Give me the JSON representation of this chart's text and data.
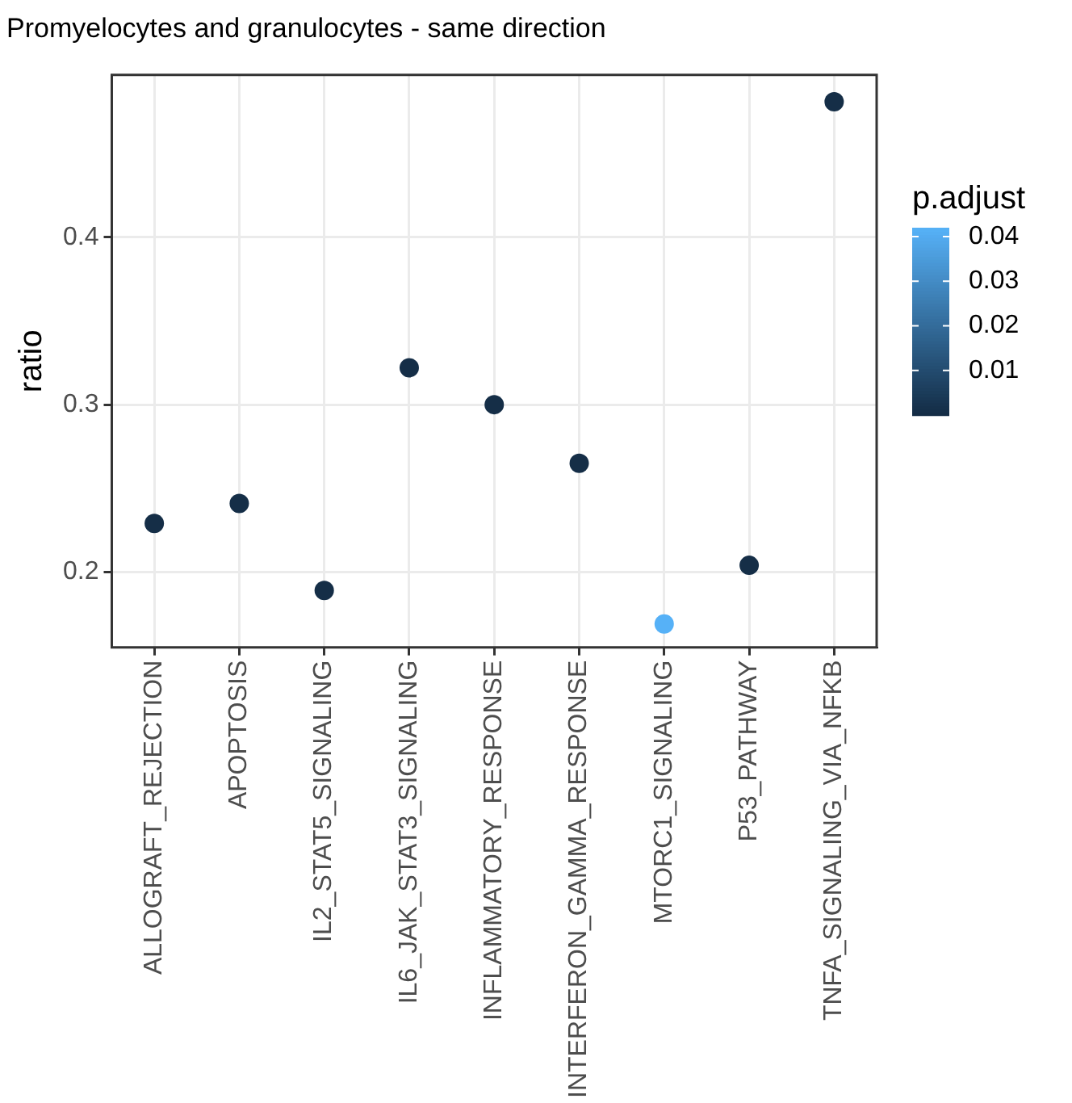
{
  "chart_data": {
    "type": "scatter",
    "title": "Promyelocytes and granulocytes - same direction",
    "ylabel": "ratio",
    "clabel": "p.adjust",
    "categories": [
      "ALLOGRAFT_REJECTION",
      "APOPTOSIS",
      "IL2_STAT5_SIGNALING",
      "IL6_JAK_STAT3_SIGNALING",
      "INFLAMMATORY_RESPONSE",
      "INTERFERON_GAMMA_RESPONSE",
      "MTORC1_SIGNALING",
      "P53_PATHWAY",
      "TNFA_SIGNALING_VIA_NFKB"
    ],
    "values": [
      0.229,
      0.241,
      0.189,
      0.322,
      0.3,
      0.265,
      0.169,
      0.204,
      0.481
    ],
    "cvalues": [
      0.001,
      0.001,
      0.001,
      0.001,
      0.001,
      0.001,
      0.042,
      0.001,
      0.001
    ],
    "clim": [
      0,
      0.042
    ],
    "cticks": [
      0.01,
      0.02,
      0.03,
      0.04
    ],
    "ylim": [
      0.155,
      0.497
    ],
    "yticks": [
      0.2,
      0.3,
      0.4
    ],
    "grid": true,
    "legend": false,
    "marker": "circle"
  }
}
